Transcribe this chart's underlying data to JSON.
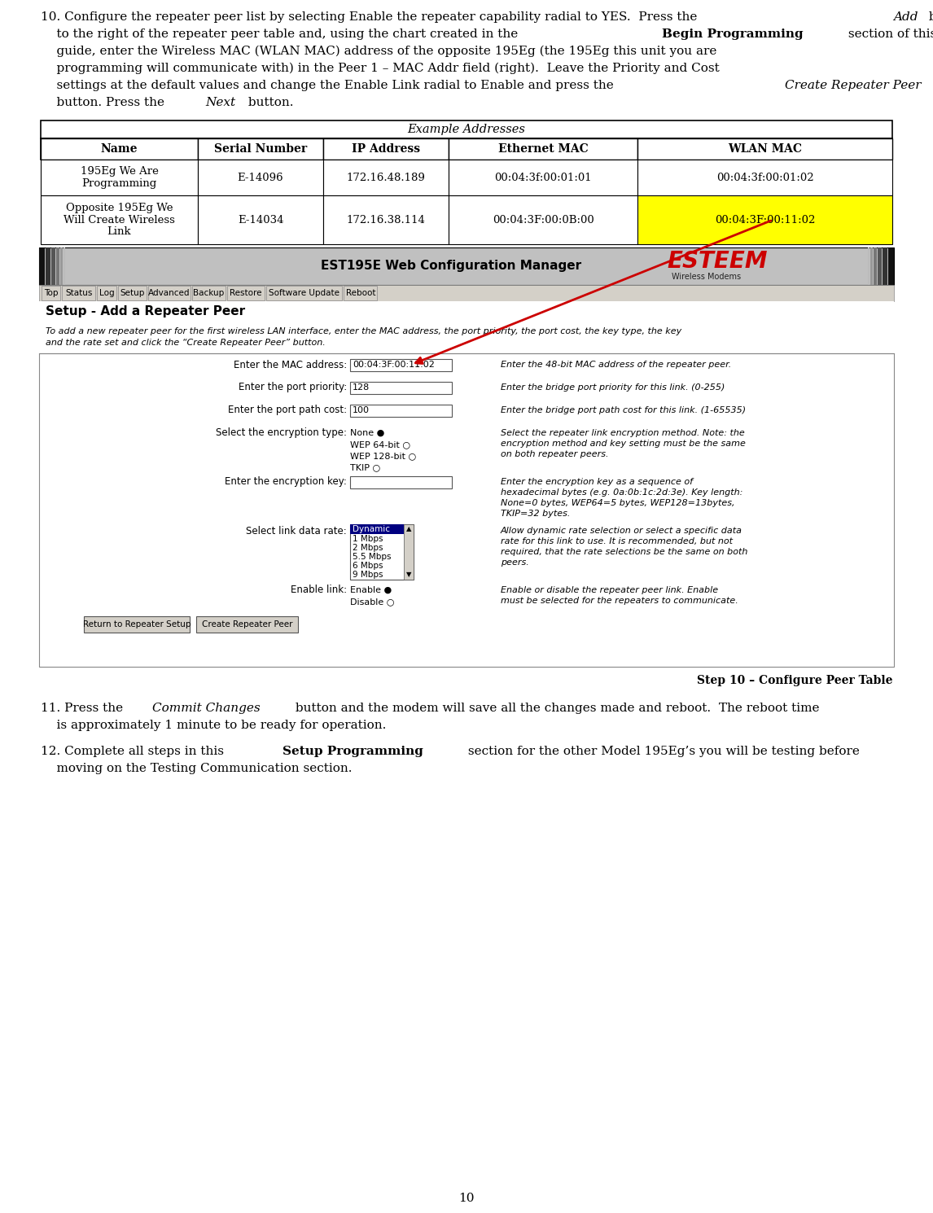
{
  "page_number": "10",
  "table_title": "Example Addresses",
  "table_headers": [
    "Name",
    "Serial Number",
    "IP Address",
    "Ethernet MAC",
    "WLAN MAC"
  ],
  "table_rows": [
    [
      "195Eg We Are\nProgramming",
      "E-14096",
      "172.16.48.189",
      "00:04:3f:00:01:01",
      "00:04:3f:00:01:02"
    ],
    [
      "Opposite 195Eg We\nWill Create Wireless\nLink",
      "E-14034",
      "172.16.38.114",
      "00:04:3F:00:0B:00",
      "00:04:3F:00:11:02"
    ]
  ],
  "highlighted_cell": [
    1,
    4
  ],
  "highlight_color": "#FFFF00",
  "step10_caption": "Step 10 – Configure Peer Table",
  "arrow_color": "#CC0000",
  "bg_color": "#FFFFFF",
  "text_color": "#000000",
  "screenshot_header_title": "EST195E Web Configuration Manager",
  "screenshot_heading": "Setup - Add a Repeater Peer",
  "screenshot_intro_line1": "To add a new repeater peer for the first wireless LAN interface, enter the MAC address, the port priority, the port cost, the key type, the key",
  "screenshot_intro_line2": "and the rate set and click the “Create Repeater Peer” button.",
  "nav_items": [
    "Top",
    "Status",
    "Log",
    "Setup",
    "Advanced",
    "Backup",
    "Restore",
    "Software Update",
    "Reboot"
  ]
}
